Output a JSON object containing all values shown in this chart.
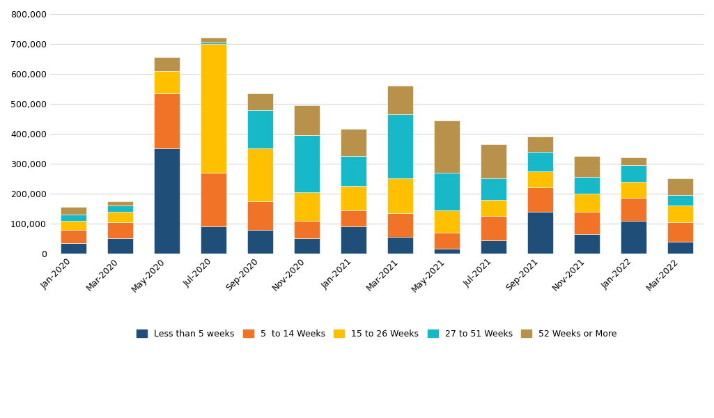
{
  "categories": [
    "Jan-2020",
    "Mar-2020",
    "May-2020",
    "Jul-2020",
    "Sep-2020",
    "Nov-2020",
    "Jan-2021",
    "Mar-2021",
    "May-2021",
    "Jul-2021",
    "Sep-2021",
    "Nov-2021",
    "Jan-2022",
    "Mar-2022"
  ],
  "series": {
    "Less than 5 weeks": [
      35000,
      50000,
      350000,
      90000,
      80000,
      50000,
      90000,
      55000,
      15000,
      45000,
      140000,
      65000,
      110000,
      40000
    ],
    "5  to 14 Weeks": [
      45000,
      55000,
      185000,
      180000,
      95000,
      60000,
      55000,
      80000,
      55000,
      80000,
      80000,
      75000,
      75000,
      65000
    ],
    "15 to 26 Weeks": [
      30000,
      35000,
      75000,
      430000,
      175000,
      95000,
      80000,
      115000,
      75000,
      55000,
      55000,
      60000,
      55000,
      55000
    ],
    "27 to 51 Weeks": [
      20000,
      20000,
      0,
      5000,
      130000,
      190000,
      100000,
      215000,
      125000,
      70000,
      65000,
      55000,
      55000,
      35000
    ],
    "52 Weeks or More": [
      25000,
      15000,
      45000,
      15000,
      55000,
      100000,
      90000,
      95000,
      175000,
      115000,
      50000,
      70000,
      25000,
      55000
    ]
  },
  "colors": {
    "Less than 5 weeks": "#1F4E79",
    "5  to 14 Weeks": "#F07328",
    "15 to 26 Weeks": "#FFC000",
    "27 to 51 Weeks": "#17B8C8",
    "52 Weeks or More": "#B8924A"
  },
  "ylim": [
    0,
    800000
  ],
  "yticks": [
    0,
    100000,
    200000,
    300000,
    400000,
    500000,
    600000,
    700000,
    800000
  ],
  "background_color": "#FFFFFF",
  "grid_color": "#D0D0D0"
}
